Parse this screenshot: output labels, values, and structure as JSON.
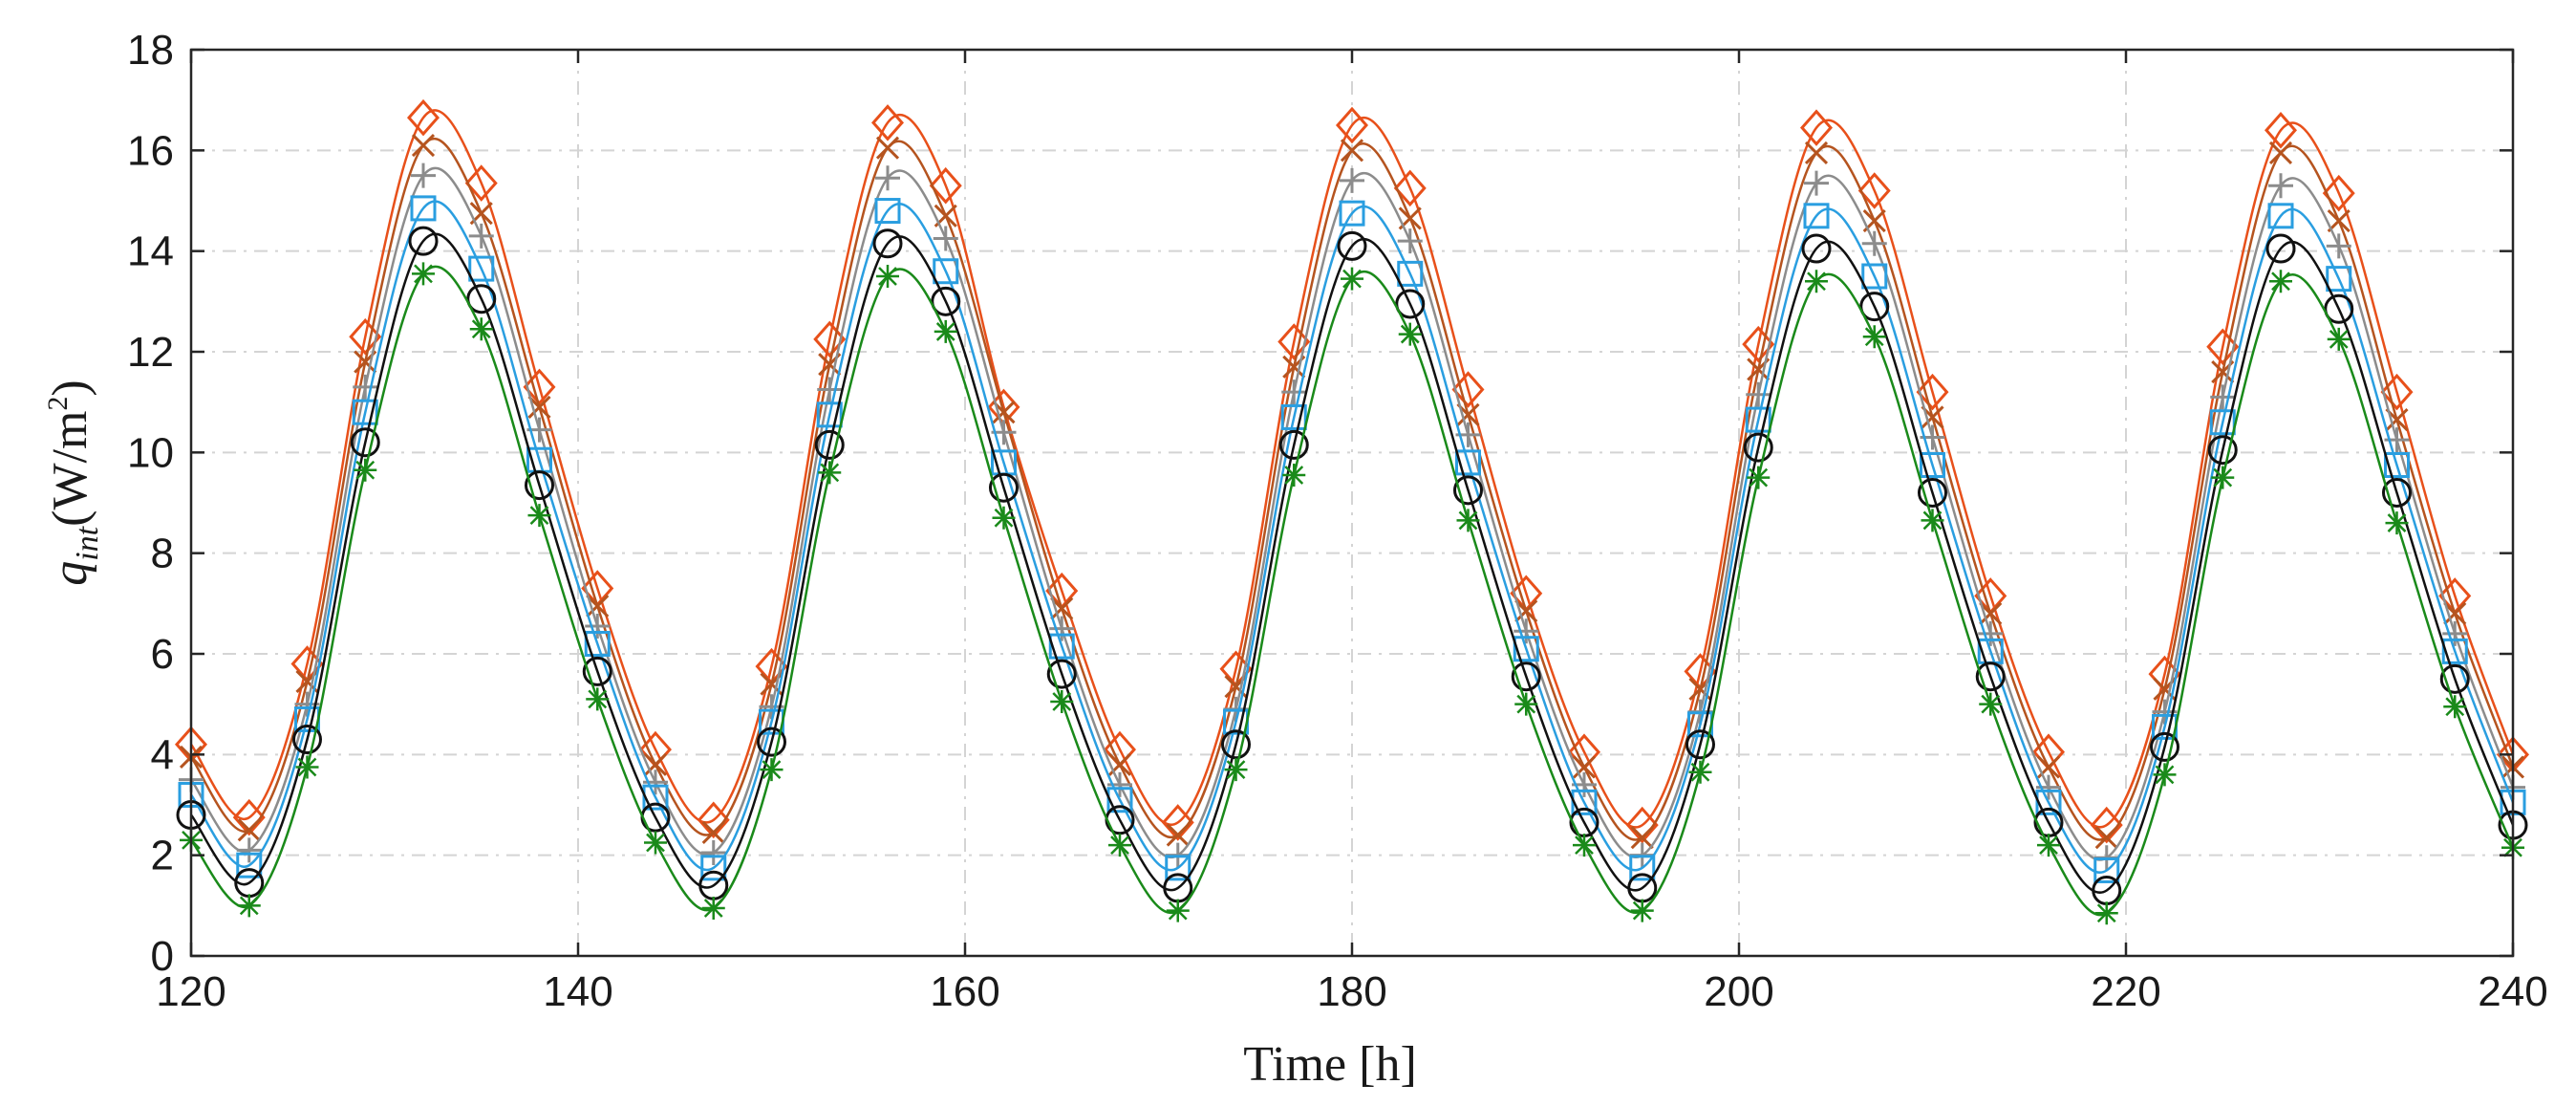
{
  "chart_data": {
    "type": "line",
    "title": "",
    "xlabel": "Time [h]",
    "ylabel": {
      "symbol": "q",
      "subscript": "int",
      "unit_prefix": "(W/m",
      "unit_power": "2",
      "unit_suffix": ")"
    },
    "xlim": [
      120,
      240
    ],
    "ylim": [
      0,
      18
    ],
    "xticks": [
      120,
      140,
      160,
      180,
      200,
      220,
      240
    ],
    "yticks": [
      0,
      2,
      4,
      6,
      8,
      10,
      12,
      14,
      16,
      18
    ],
    "grid": true,
    "legend": "none",
    "x": [
      120,
      123,
      126,
      129,
      132,
      135,
      138,
      141,
      144,
      147,
      150,
      153,
      156,
      159,
      162,
      165,
      168,
      171,
      174,
      177,
      180,
      183,
      186,
      189,
      192,
      195,
      198,
      201,
      204,
      207,
      210,
      213,
      216,
      219,
      222,
      225,
      228,
      231,
      234,
      237,
      240
    ],
    "series": [
      {
        "name": "diamond",
        "color": "#e8501a",
        "marker": "diamond",
        "values": [
          4.2,
          2.75,
          5.8,
          12.3,
          16.65,
          15.35,
          11.3,
          7.3,
          4.1,
          2.7,
          5.75,
          12.25,
          16.55,
          15.3,
          10.9,
          7.25,
          4.1,
          2.65,
          5.7,
          12.2,
          16.5,
          15.25,
          11.25,
          7.2,
          4.05,
          2.6,
          5.65,
          12.15,
          16.45,
          15.2,
          11.2,
          7.15,
          4.05,
          2.6,
          5.6,
          12.1,
          16.4,
          15.15,
          11.2,
          7.15,
          4.0
        ]
      },
      {
        "name": "cross",
        "color": "#b5541f",
        "marker": "x",
        "values": [
          3.95,
          2.5,
          5.45,
          11.8,
          16.1,
          14.75,
          10.9,
          6.95,
          3.8,
          2.45,
          5.4,
          11.75,
          16.05,
          14.7,
          10.8,
          6.9,
          3.8,
          2.4,
          5.35,
          11.7,
          16.0,
          14.65,
          10.75,
          6.85,
          3.75,
          2.35,
          5.3,
          11.65,
          15.95,
          14.6,
          10.7,
          6.8,
          3.75,
          2.35,
          5.3,
          11.6,
          15.95,
          14.6,
          10.65,
          6.8,
          3.75
        ]
      },
      {
        "name": "plus",
        "color": "#8c8c8c",
        "marker": "plus",
        "values": [
          3.5,
          2.1,
          5.0,
          11.3,
          15.5,
          14.3,
          10.45,
          6.55,
          3.45,
          2.05,
          4.95,
          11.25,
          15.45,
          14.25,
          10.4,
          6.5,
          3.4,
          2.0,
          4.9,
          11.2,
          15.4,
          14.2,
          10.35,
          6.45,
          3.4,
          2.0,
          4.85,
          11.15,
          15.35,
          14.15,
          10.3,
          6.4,
          3.35,
          1.95,
          4.85,
          11.1,
          15.3,
          14.1,
          10.25,
          6.4,
          3.35
        ]
      },
      {
        "name": "square",
        "color": "#2a9ee0",
        "marker": "square",
        "values": [
          3.2,
          1.8,
          4.7,
          10.8,
          14.85,
          13.65,
          9.85,
          6.2,
          3.15,
          1.75,
          4.65,
          10.75,
          14.8,
          13.6,
          9.8,
          6.15,
          3.1,
          1.75,
          4.65,
          10.7,
          14.75,
          13.55,
          9.8,
          6.1,
          3.05,
          1.75,
          4.6,
          10.65,
          14.7,
          13.5,
          9.75,
          6.05,
          3.05,
          1.7,
          4.55,
          10.6,
          14.7,
          13.45,
          9.75,
          6.05,
          3.05
        ]
      },
      {
        "name": "circle",
        "color": "#111111",
        "marker": "circle",
        "values": [
          2.8,
          1.45,
          4.3,
          10.2,
          14.2,
          13.05,
          9.35,
          5.65,
          2.75,
          1.4,
          4.25,
          10.15,
          14.15,
          13.0,
          9.3,
          5.6,
          2.7,
          1.35,
          4.2,
          10.15,
          14.1,
          12.95,
          9.25,
          5.55,
          2.65,
          1.35,
          4.2,
          10.1,
          14.05,
          12.9,
          9.2,
          5.55,
          2.65,
          1.3,
          4.15,
          10.05,
          14.05,
          12.85,
          9.2,
          5.5,
          2.6
        ]
      },
      {
        "name": "asterisk",
        "color": "#1a8a1a",
        "marker": "asterisk",
        "values": [
          2.3,
          1.0,
          3.75,
          9.65,
          13.55,
          12.45,
          8.75,
          5.1,
          2.25,
          0.95,
          3.7,
          9.6,
          13.5,
          12.4,
          8.7,
          5.05,
          2.2,
          0.9,
          3.7,
          9.55,
          13.45,
          12.35,
          8.65,
          5.0,
          2.2,
          0.9,
          3.65,
          9.5,
          13.4,
          12.3,
          8.65,
          5.0,
          2.2,
          0.85,
          3.6,
          9.5,
          13.4,
          12.25,
          8.6,
          4.95,
          2.15
        ]
      }
    ]
  }
}
